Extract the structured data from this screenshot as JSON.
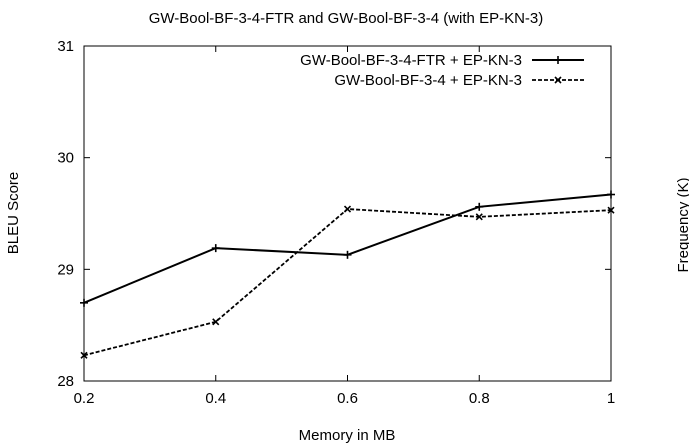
{
  "chart_data": {
    "type": "line",
    "title": "GW-Bool-BF-3-4-FTR and GW-Bool-BF-3-4 (with EP-KN-3)",
    "xlabel": "Memory in MB",
    "ylabel": "BLEU Score",
    "xlim": [
      0.2,
      1
    ],
    "ylim": [
      28,
      31
    ],
    "x_ticks": [
      "0.2",
      "0.4",
      "0.6",
      "0.8",
      "1"
    ],
    "y_ticks": [
      "28",
      "29",
      "30",
      "31"
    ],
    "grid": false,
    "legend_position": "top-right",
    "x": [
      0.2,
      0.4,
      0.6,
      0.8,
      1.0
    ],
    "series": [
      {
        "name": "GW-Bool-BF-3-4-FTR + EP-KN-3",
        "values": [
          28.7,
          29.19,
          29.13,
          29.56,
          29.67
        ],
        "line_style": "solid",
        "marker": "plus"
      },
      {
        "name": "GW-Bool-BF-3-4 + EP-KN-3",
        "values": [
          28.23,
          28.53,
          29.54,
          29.47,
          29.53
        ],
        "line_style": "dashed",
        "marker": "cross"
      }
    ],
    "clipped_right_label": "Frequency (K)"
  }
}
